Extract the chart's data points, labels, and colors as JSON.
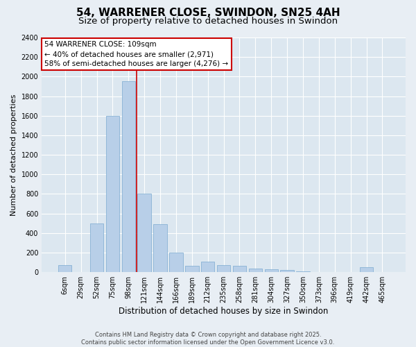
{
  "title": "54, WARRENER CLOSE, SWINDON, SN25 4AH",
  "subtitle": "Size of property relative to detached houses in Swindon",
  "xlabel": "Distribution of detached houses by size in Swindon",
  "ylabel": "Number of detached properties",
  "categories": [
    "6sqm",
    "29sqm",
    "52sqm",
    "75sqm",
    "98sqm",
    "121sqm",
    "144sqm",
    "166sqm",
    "189sqm",
    "212sqm",
    "235sqm",
    "258sqm",
    "281sqm",
    "304sqm",
    "327sqm",
    "350sqm",
    "373sqm",
    "396sqm",
    "419sqm",
    "442sqm",
    "465sqm"
  ],
  "values": [
    70,
    0,
    500,
    1600,
    1950,
    800,
    490,
    200,
    65,
    110,
    70,
    65,
    40,
    30,
    20,
    10,
    5,
    3,
    2,
    50,
    0
  ],
  "bar_color": "#b8cfe8",
  "bar_edgecolor": "#7aaad0",
  "vline_x": 4.5,
  "vline_color": "#cc0000",
  "annotation_text": "54 WARRENER CLOSE: 109sqm\n← 40% of detached houses are smaller (2,971)\n58% of semi-detached houses are larger (4,276) →",
  "annotation_box_facecolor": "white",
  "annotation_box_edgecolor": "#cc0000",
  "ylim": [
    0,
    2400
  ],
  "yticks": [
    0,
    200,
    400,
    600,
    800,
    1000,
    1200,
    1400,
    1600,
    1800,
    2000,
    2200,
    2400
  ],
  "background_color": "#e8eef4",
  "plot_background_color": "#dce7f0",
  "grid_color": "white",
  "footer_text": "Contains HM Land Registry data © Crown copyright and database right 2025.\nContains public sector information licensed under the Open Government Licence v3.0.",
  "title_fontsize": 11,
  "subtitle_fontsize": 9.5,
  "xlabel_fontsize": 8.5,
  "ylabel_fontsize": 8,
  "tick_fontsize": 7,
  "annotation_fontsize": 7.5,
  "footer_fontsize": 6
}
